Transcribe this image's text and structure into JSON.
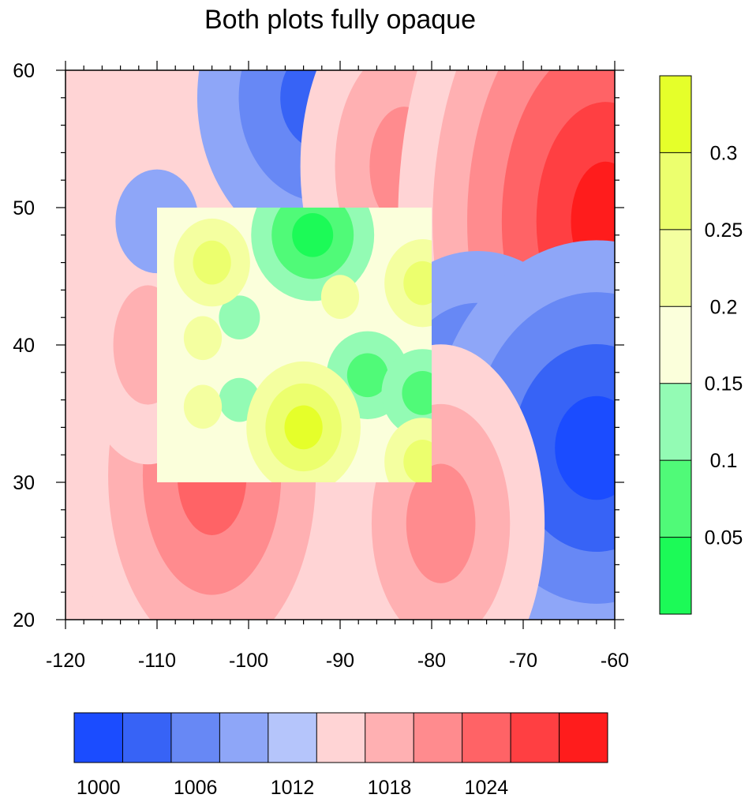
{
  "chart_data": {
    "type": "heatmap",
    "title": "Both plots fully opaque",
    "xlabel": "",
    "ylabel": "",
    "xlim": [
      -120,
      -60
    ],
    "ylim": [
      20,
      60
    ],
    "x_ticks": [
      "-120",
      "-110",
      "-100",
      "-90",
      "-80",
      "-70",
      "-60"
    ],
    "y_ticks": [
      "60",
      "50",
      "40",
      "30",
      "20"
    ],
    "base_field": {
      "name": "",
      "background_level": 1012,
      "colorbar": {
        "placement": "bottom",
        "colors": [
          "#1b4cff",
          "#3763f6",
          "#6788f5",
          "#8ea6f8",
          "#b5c5fb",
          "#ffd4d5",
          "#ffb0b2",
          "#ff8b8e",
          "#ff6366",
          "#ff3f42",
          "#ff1c1c"
        ],
        "labels": [
          "1000",
          "1006",
          "1012",
          "1018",
          "1024"
        ],
        "label_levels": [
          1000,
          1006,
          1012,
          1018,
          1024
        ],
        "level_boundaries": [
          1000,
          1003,
          1006,
          1009,
          1012,
          1015,
          1018,
          1021,
          1024,
          1027
        ]
      },
      "features": [
        {
          "kind": "low",
          "lon": -92,
          "lat": 58,
          "min_level": 1003
        },
        {
          "kind": "high",
          "lon": -83,
          "lat": 53,
          "max_level": 1021
        },
        {
          "kind": "high",
          "lon": -61,
          "lat": 49,
          "max_level": 1030
        },
        {
          "kind": "low",
          "lon": -75,
          "lat": 35.5,
          "min_level": 1003
        },
        {
          "kind": "low",
          "lon": -62,
          "lat": 32.5,
          "min_level": 1000
        },
        {
          "kind": "high",
          "lon": -79,
          "lat": 27,
          "max_level": 1021
        },
        {
          "kind": "high",
          "lon": -104,
          "lat": 30.5,
          "max_level": 1024
        },
        {
          "kind": "high",
          "lon": -111,
          "lat": 40,
          "max_level": 1018
        },
        {
          "kind": "low",
          "lon": -110,
          "lat": 49,
          "min_level": 1009
        }
      ]
    },
    "overlay_field": {
      "name": "",
      "region": {
        "lon": [
          -110,
          -80
        ],
        "lat": [
          30,
          50
        ]
      },
      "colorbar": {
        "placement": "right",
        "colors": [
          "#1cfa57",
          "#50fa78",
          "#93fbb4",
          "#fbffdb",
          "#f4ffa0",
          "#ecff6e",
          "#e5ff2a"
        ],
        "labels": [
          "0.05",
          "0.1",
          "0.15",
          "0.2",
          "0.25",
          "0.3"
        ],
        "level_boundaries": [
          0.05,
          0.1,
          0.15,
          0.2,
          0.25,
          0.3
        ]
      },
      "features": [
        {
          "kind": "min",
          "lon": -93,
          "lat": 48,
          "min_value": 0.03
        },
        {
          "kind": "min",
          "lon": -87,
          "lat": 37.8,
          "min_value": 0.08
        },
        {
          "kind": "min",
          "lon": -81,
          "lat": 36.5,
          "min_value": 0.08
        },
        {
          "kind": "min",
          "lon": -101,
          "lat": 42,
          "min_value": 0.12
        },
        {
          "kind": "min",
          "lon": -101,
          "lat": 36,
          "min_value": 0.12
        },
        {
          "kind": "max",
          "lon": -94,
          "lat": 34,
          "max_value": 0.32
        },
        {
          "kind": "max",
          "lon": -81,
          "lat": 44.5,
          "max_value": 0.27
        },
        {
          "kind": "max",
          "lon": -81,
          "lat": 31.5,
          "max_value": 0.27
        },
        {
          "kind": "max",
          "lon": -104,
          "lat": 46,
          "max_value": 0.25
        },
        {
          "kind": "max",
          "lon": -105,
          "lat": 40.5,
          "max_value": 0.22
        },
        {
          "kind": "max",
          "lon": -105,
          "lat": 35.5,
          "max_value": 0.22
        },
        {
          "kind": "max",
          "lon": -90,
          "lat": 43.5,
          "max_value": 0.22
        }
      ]
    },
    "grid": false,
    "legend": "colorbars bottom and right"
  }
}
